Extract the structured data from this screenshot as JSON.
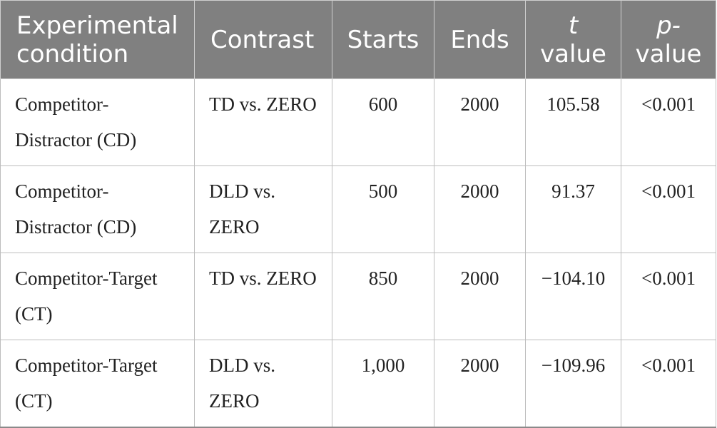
{
  "table": {
    "headers": {
      "condition": "Experimental condition",
      "contrast": "Contrast",
      "starts": "Starts",
      "ends": "Ends",
      "t_italic": "t",
      "t_rest": "value",
      "p_italic": "p-",
      "p_rest": "value"
    },
    "rows": [
      {
        "condition": "Competitor-Distractor (CD)",
        "contrast": "TD vs. ZERO",
        "starts": "600",
        "ends": "2000",
        "t": "105.58",
        "p": "<0.001"
      },
      {
        "condition": "Competitor-Distractor (CD)",
        "contrast": "DLD vs. ZERO",
        "starts": "500",
        "ends": "2000",
        "t": "91.37",
        "p": "<0.001"
      },
      {
        "condition": "Competitor-Target (CT)",
        "contrast": "TD vs. ZERO",
        "starts": "850",
        "ends": "2000",
        "t": "−104.10",
        "p": "<0.001"
      },
      {
        "condition": "Competitor-Target (CT)",
        "contrast": "DLD vs. ZERO",
        "starts": "1,000",
        "ends": "2000",
        "t": "−109.96",
        "p": "<0.001"
      }
    ]
  }
}
